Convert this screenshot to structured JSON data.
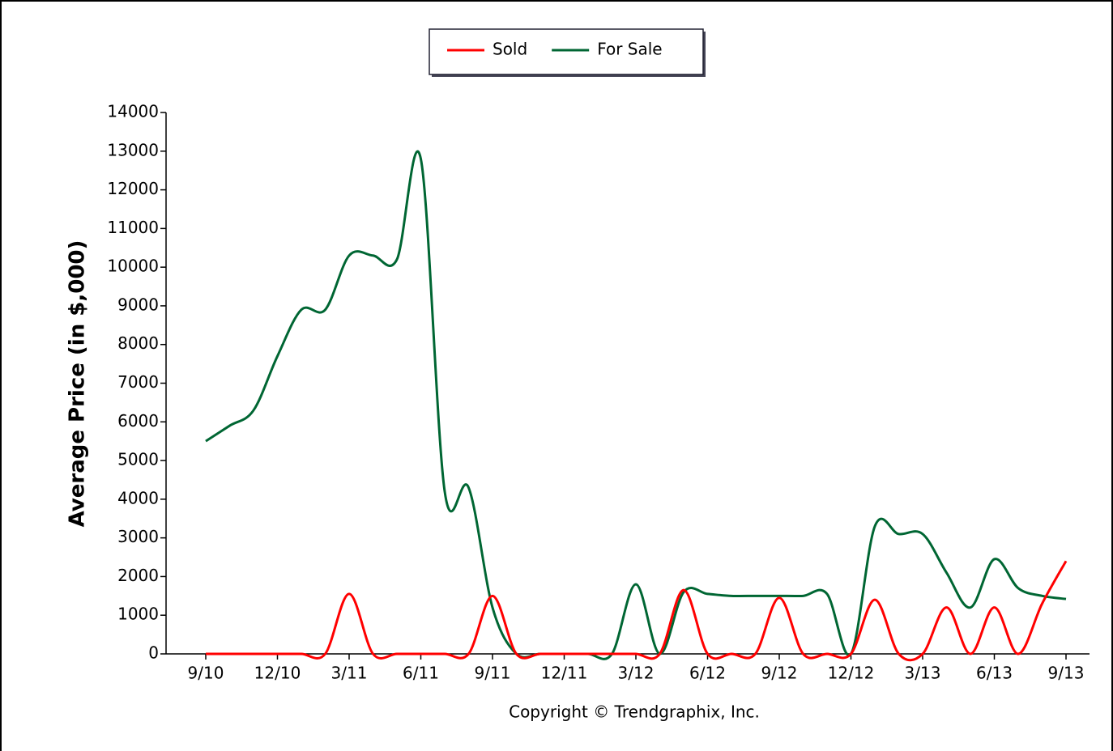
{
  "chart_data": {
    "type": "line",
    "y_label": "Average Price (in $,000)",
    "footer": "Copyright © Trendgraphix, Inc.",
    "categories": [
      "9/10",
      null,
      null,
      "12/10",
      null,
      null,
      "3/11",
      null,
      null,
      "6/11",
      null,
      null,
      "9/11",
      null,
      null,
      "12/11",
      null,
      null,
      "3/12",
      null,
      null,
      "6/12",
      null,
      null,
      "9/12",
      null,
      null,
      "12/12",
      null,
      null,
      "3/13",
      null,
      null,
      "6/13",
      null,
      null,
      "9/13"
    ],
    "series": [
      {
        "name": "Sold",
        "color": "#ff0000",
        "values": [
          0,
          0,
          0,
          0,
          0,
          0,
          1550,
          0,
          0,
          0,
          0,
          0,
          1500,
          0,
          0,
          0,
          0,
          0,
          0,
          0,
          1650,
          0,
          0,
          0,
          1450,
          0,
          0,
          0,
          1400,
          0,
          0,
          1200,
          0,
          1200,
          0,
          1300,
          2400
        ]
      },
      {
        "name": "For Sale",
        "color": "#006633",
        "values": [
          5500,
          5900,
          6300,
          7700,
          8900,
          8900,
          10300,
          10300,
          10200,
          12800,
          4200,
          4300,
          1200,
          0,
          0,
          0,
          0,
          0,
          1800,
          0,
          1600,
          1550,
          1500,
          1500,
          1500,
          1500,
          1550,
          0,
          3300,
          3100,
          3100,
          2100,
          1200,
          2450,
          1700,
          1500,
          1420
        ]
      }
    ],
    "ylim": [
      0,
      14000
    ],
    "yticks": [
      0,
      1000,
      2000,
      3000,
      4000,
      5000,
      6000,
      7000,
      8000,
      9000,
      10000,
      11000,
      12000,
      13000,
      14000
    ],
    "legend": "top"
  }
}
